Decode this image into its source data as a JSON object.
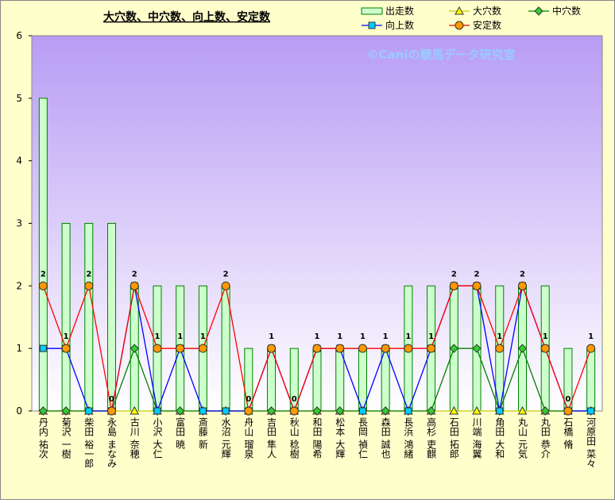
{
  "chart_data": {
    "type": "bar",
    "title": "大穴数、中穴数、向上数、安定数",
    "annotation": "©Caniの競馬データ研究室",
    "categories": [
      "丹内 祐次",
      "菊沢 一樹",
      "柴田 裕一郎",
      "永島 まなみ",
      "古川 奈穂",
      "小沢 大仁",
      "富田 暁",
      "斎藤 新",
      "水沼 元輝",
      "舟山 瑠泉",
      "吉田 隼人",
      "秋山 稔樹",
      "和田 陽希",
      "松本 大輝",
      "長岡 禎仁",
      "森田 誠也",
      "長浜 鴻緒",
      "高杉 吏麒",
      "石田 拓郎",
      "川端 海翼",
      "角田 大和",
      "丸山 元気",
      "丸田 恭介",
      "石橋 脩",
      "河原田 菜々"
    ],
    "series": [
      {
        "name": "出走数",
        "type": "bar",
        "color": "#ccffcc",
        "edge": "#008000",
        "values": [
          5,
          3,
          3,
          3,
          2,
          2,
          2,
          2,
          2,
          1,
          1,
          1,
          1,
          1,
          1,
          1,
          2,
          2,
          2,
          2,
          2,
          2,
          2,
          1,
          1
        ]
      },
      {
        "name": "大穴数",
        "type": "line",
        "color": "#cccc00",
        "marker": "triangle",
        "marker_color": "#ffff00",
        "values": [
          0,
          0,
          0,
          0,
          0,
          0,
          0,
          0,
          0,
          0,
          0,
          0,
          0,
          0,
          0,
          0,
          0,
          0,
          0,
          0,
          0,
          0,
          0,
          0,
          0
        ]
      },
      {
        "name": "中穴数",
        "type": "line",
        "color": "#008000",
        "marker": "diamond",
        "marker_color": "#33cc33",
        "values": [
          0,
          0,
          0,
          0,
          1,
          0,
          0,
          0,
          0,
          0,
          0,
          0,
          0,
          0,
          0,
          0,
          0,
          0,
          1,
          1,
          0,
          1,
          0,
          0,
          0
        ]
      },
      {
        "name": "向上数",
        "type": "line",
        "color": "#0000ff",
        "marker": "square",
        "marker_color": "#00ccff",
        "values": [
          1,
          1,
          0,
          0,
          2,
          0,
          1,
          0,
          0,
          0,
          1,
          0,
          1,
          1,
          0,
          1,
          0,
          1,
          2,
          2,
          0,
          2,
          1,
          0,
          0
        ]
      },
      {
        "name": "安定数",
        "type": "line",
        "color": "#ff0000",
        "marker": "circle",
        "marker_color": "#ff9900",
        "labels": true,
        "values": [
          2,
          1,
          2,
          0,
          2,
          1,
          1,
          1,
          2,
          0,
          1,
          0,
          1,
          1,
          1,
          1,
          1,
          1,
          2,
          2,
          1,
          2,
          1,
          0,
          1
        ]
      }
    ],
    "ylim": [
      0,
      6
    ],
    "yticks": [
      0,
      1,
      2,
      3,
      4,
      5,
      6
    ],
    "grid": false
  }
}
